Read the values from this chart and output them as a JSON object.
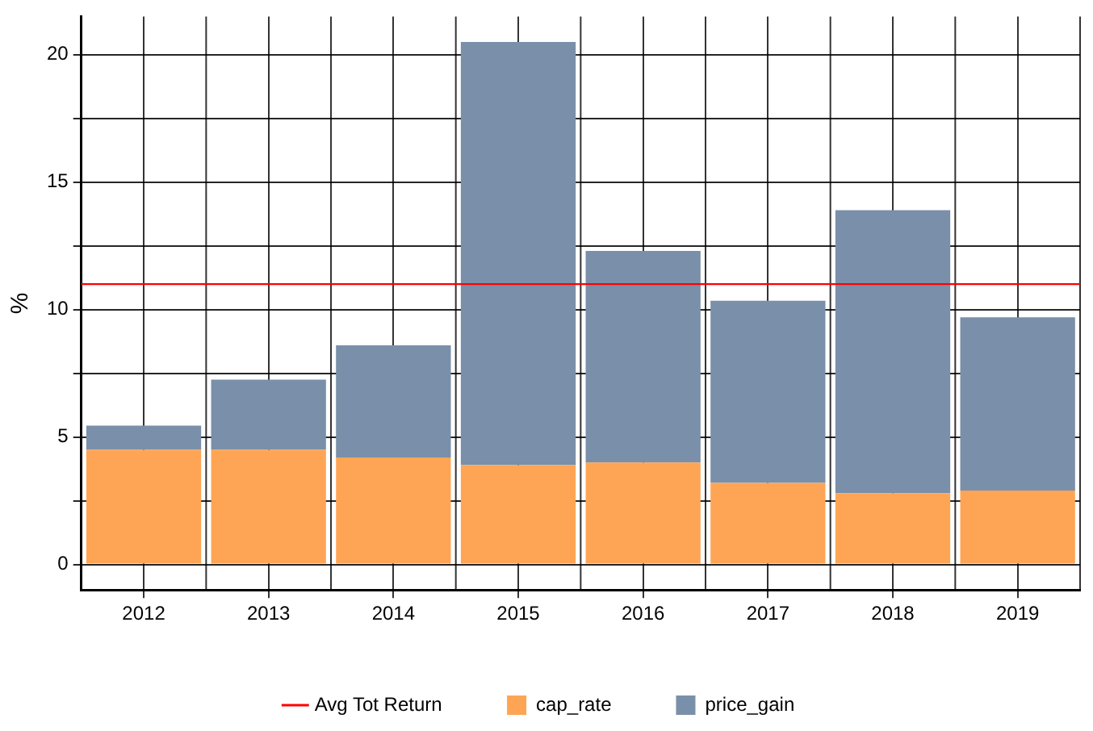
{
  "chart_data": {
    "type": "bar",
    "ylabel": "%",
    "categories": [
      "2012",
      "2013",
      "2014",
      "2015",
      "2016",
      "2017",
      "2018",
      "2019"
    ],
    "stacked": true,
    "series": [
      {
        "name": "cap_rate",
        "color": "#fea555",
        "values": [
          4.5,
          4.5,
          4.2,
          3.9,
          4.0,
          3.2,
          2.8,
          2.9
        ]
      },
      {
        "name": "price_gain",
        "color": "#7a8fa9",
        "values": [
          0.95,
          2.75,
          4.4,
          16.6,
          8.3,
          7.15,
          11.1,
          6.8
        ]
      }
    ],
    "ylim": [
      -1,
      21.5
    ],
    "yticks": [
      0,
      {
        "value": 2.5,
        "label": null
      },
      5,
      {
        "value": 7.5,
        "label": null
      },
      10,
      {
        "value": 12.5,
        "label": null
      },
      15,
      {
        "value": 17.5,
        "label": null
      },
      20
    ],
    "ref_lines": [
      {
        "axis": "y",
        "value": 11,
        "label": "Avg Tot Return",
        "color": "#ff0000"
      }
    ],
    "grid": true,
    "legend": "bottom"
  }
}
